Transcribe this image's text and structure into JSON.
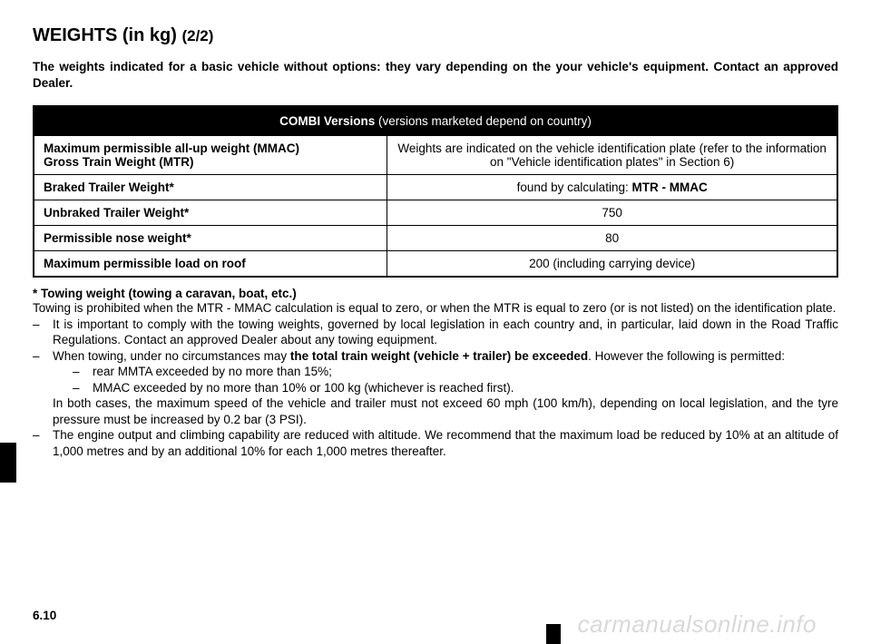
{
  "title_main": "WEIGHTS (in kg)",
  "title_sub": "(2/2)",
  "intro": "The weights indicated for a basic vehicle without options: they vary depending on the your vehicle's equipment. Contact an approved Dealer.",
  "table": {
    "header_bold": "COMBI Versions",
    "header_rest": " (versions marketed depend on country)",
    "rows": [
      {
        "label_line1": "Maximum permissible all-up weight (MMAC)",
        "label_line2": "Gross Train Weight (MTR)",
        "value": "Weights are indicated on the vehicle identification plate (refer to the information on \"Vehicle identification plates\" in Section 6)"
      },
      {
        "label": "Braked Trailer Weight*",
        "value_prefix": "found by calculating: ",
        "value_bold": "MTR - MMAC"
      },
      {
        "label": "Unbraked Trailer Weight*",
        "value": "750"
      },
      {
        "label": "Permissible nose weight*",
        "value": "80"
      },
      {
        "label": "Maximum permissible load on roof",
        "value": "200 (including carrying device)"
      }
    ]
  },
  "footnote": {
    "title": "* Towing weight (towing a caravan, boat, etc.)",
    "para1": "Towing is prohibited when the MTR - MMAC calculation is equal to zero, or when the MTR is equal to zero (or is not listed) on the identification plate.",
    "bullet1": "It is important to comply with the towing weights, governed by local legislation in each country and, in particular, laid down in the Road Traffic Regulations. Contact an approved Dealer about any towing equipment.",
    "bullet2_pre": "When towing, under no circumstances may ",
    "bullet2_bold": "the total train weight (vehicle + trailer) be exceeded",
    "bullet2_post": ". However the following is permitted:",
    "inner1": "rear MMTA exceeded by no more than 15%;",
    "inner2": "MMAC exceeded by no more than 10% or 100 kg (whichever is reached first).",
    "after_inner": "In both cases, the maximum speed of the vehicle and trailer must not exceed 60 mph (100 km/h), depending on local legislation, and the tyre pressure must be increased by 0.2 bar (3 PSI).",
    "bullet3": "The engine output and climbing capability are reduced with altitude. We recommend that the maximum load be reduced by 10% at an altitude of 1,000 metres and by an additional 10% for each 1,000 metres thereafter."
  },
  "page_num": "6.10",
  "watermark": "carmanualsonline.info"
}
